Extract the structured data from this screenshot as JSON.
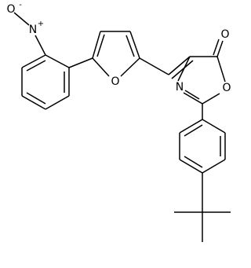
{
  "labels": {
    "nitro_oxygen": "O",
    "nitro_charge_minus": "-",
    "nitro_nitrogen": "N",
    "nitro_charge_plus": "+",
    "furan_oxygen": "O",
    "oxazole_nitrogen": "N",
    "oxazole_oxygen": "O",
    "carbonyl_oxygen": "O"
  }
}
